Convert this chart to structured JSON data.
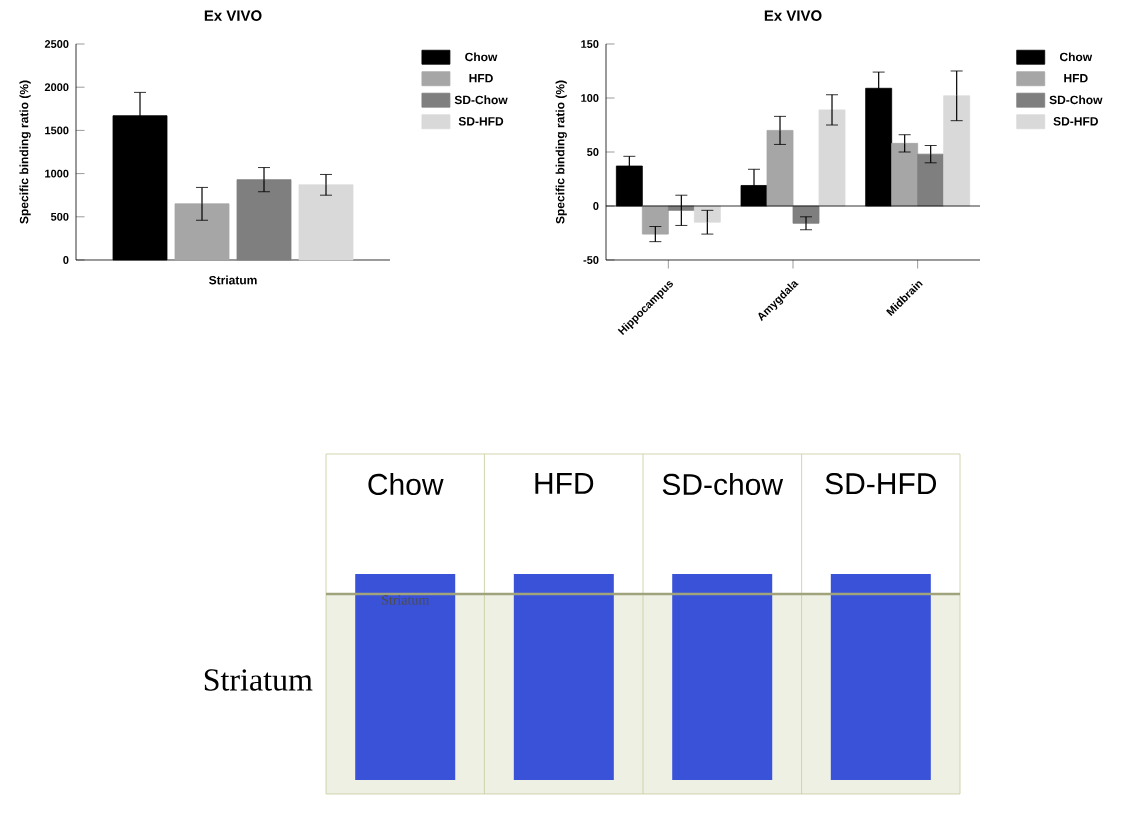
{
  "chart_data": [
    {
      "type": "bar",
      "title": "Ex VIVO",
      "xlabel": "Striatum",
      "ylabel": "Specific binding ratio (%)",
      "categories": [
        null
      ],
      "ylim": [
        0,
        2500
      ],
      "yticks": [
        0,
        500,
        1000,
        1500,
        2000,
        2500
      ],
      "legend": "right",
      "series": [
        {
          "name": "Chow",
          "color": "#000000",
          "values": [
            1670
          ],
          "errors": [
            270
          ]
        },
        {
          "name": "HFD",
          "color": "#a6a6a6",
          "values": [
            650
          ],
          "errors": [
            190
          ]
        },
        {
          "name": "SD-Chow",
          "color": "#7f7f7f",
          "values": [
            930
          ],
          "errors": [
            140
          ]
        },
        {
          "name": "SD-HFD",
          "color": "#d9d9d9",
          "values": [
            870
          ],
          "errors": [
            120
          ]
        }
      ]
    },
    {
      "type": "bar",
      "title": "Ex VIVO",
      "ylabel": "Specific binding ratio (%)",
      "categories": [
        "Hippocampus",
        "Amygdala",
        "Midbrain"
      ],
      "ylim": [
        -50,
        150
      ],
      "yticks": [
        -50,
        0,
        50,
        100,
        150
      ],
      "legend": "right",
      "series": [
        {
          "name": "Chow",
          "color": "#000000",
          "values": [
            37,
            19,
            109
          ],
          "errors": [
            9,
            15,
            15
          ]
        },
        {
          "name": "HFD",
          "color": "#a6a6a6",
          "values": [
            -26,
            70,
            58
          ],
          "errors": [
            7,
            13,
            8
          ]
        },
        {
          "name": "SD-Chow",
          "color": "#7f7f7f",
          "values": [
            -4,
            -16,
            48
          ],
          "errors": [
            14,
            6,
            8
          ]
        },
        {
          "name": "SD-HFD",
          "color": "#d9d9d9",
          "values": [
            -15,
            89,
            102
          ],
          "errors": [
            11,
            14,
            23
          ]
        }
      ]
    },
    {
      "type": "other",
      "categories": [
        "Chow",
        "HFD",
        "SD-chow",
        "SD-HFD"
      ],
      "y_categories": [
        "Striatum"
      ],
      "annotations": [
        "Striatum"
      ]
    }
  ]
}
